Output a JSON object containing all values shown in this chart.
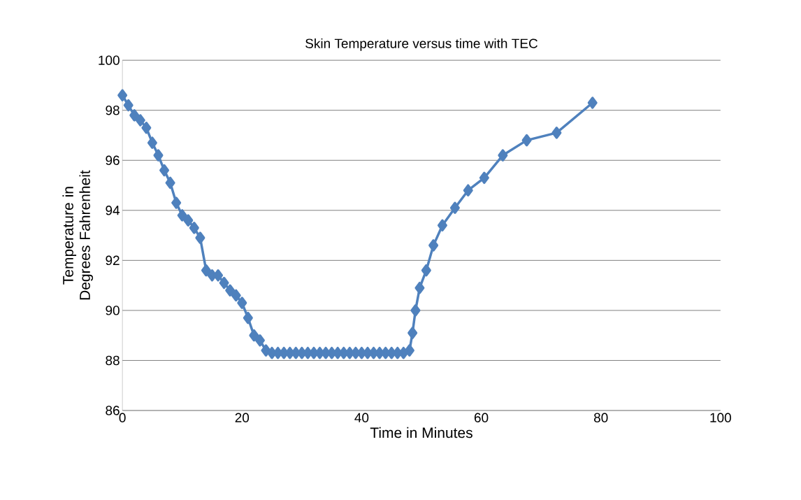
{
  "chart_data": {
    "type": "line",
    "title": "Skin Temperature versus time with TEC",
    "xlabel": "Time in Minutes",
    "ylabel": "Temperature in Degrees Fahrenheit",
    "x": [
      0,
      1,
      2,
      3,
      4,
      5,
      6,
      7,
      8,
      9,
      10,
      11,
      12,
      13,
      14,
      15,
      16,
      17,
      18,
      19,
      20,
      21,
      22,
      23,
      24,
      25,
      26,
      27,
      28,
      29,
      30,
      31,
      32,
      33,
      34,
      35,
      36,
      37,
      38,
      39,
      40,
      41,
      42,
      43,
      44,
      45,
      46,
      47,
      48,
      48.5,
      49,
      49.7,
      50.8,
      52,
      53.5,
      55.6,
      57.8,
      60.5,
      63.6,
      67.6,
      72.6,
      78.6
    ],
    "series": [
      {
        "color": "#4f81bd",
        "values": [
          98.6,
          98.2,
          97.8,
          97.6,
          97.3,
          96.7,
          96.2,
          95.6,
          95.1,
          94.3,
          93.8,
          93.6,
          93.3,
          92.9,
          91.6,
          91.4,
          91.4,
          91.1,
          90.8,
          90.6,
          90.3,
          89.7,
          89.0,
          88.8,
          88.4,
          88.3,
          88.3,
          88.3,
          88.3,
          88.3,
          88.3,
          88.3,
          88.3,
          88.3,
          88.3,
          88.3,
          88.3,
          88.3,
          88.3,
          88.3,
          88.3,
          88.3,
          88.3,
          88.3,
          88.3,
          88.3,
          88.3,
          88.3,
          88.4,
          89.1,
          90.0,
          90.9,
          91.6,
          92.6,
          93.4,
          94.1,
          94.8,
          95.3,
          96.2,
          96.8,
          97.1,
          98.3
        ]
      }
    ],
    "xlim": [
      0,
      100
    ],
    "xticks": [
      0,
      20,
      40,
      60,
      80,
      100
    ],
    "ylim": [
      86,
      100
    ],
    "yticks": [
      86,
      88,
      90,
      92,
      94,
      96,
      98,
      100
    ],
    "grid": "y",
    "marker": "diamond",
    "line_style": "solid"
  }
}
